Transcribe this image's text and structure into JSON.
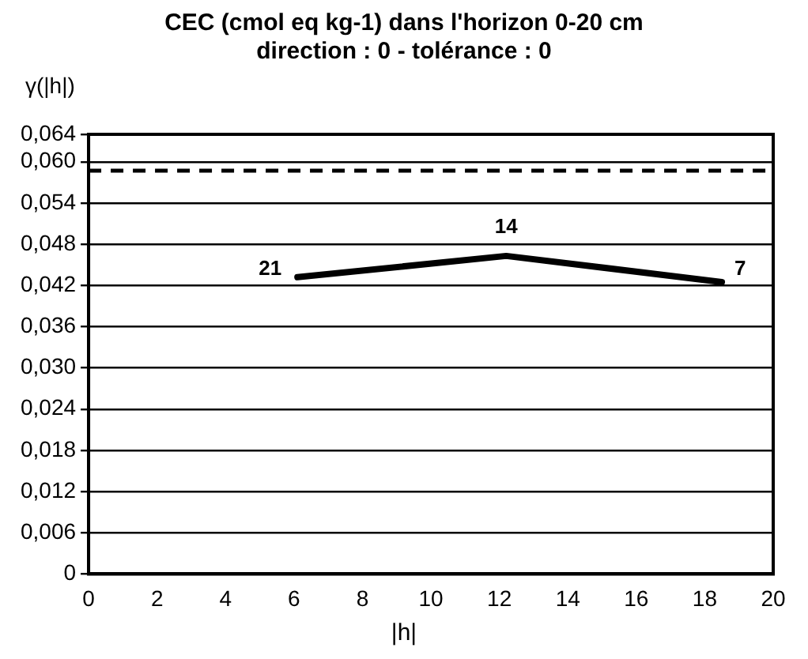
{
  "chart_data": {
    "type": "line",
    "title": "CEC (cmol eq kg-1) dans l'horizon 0-20 cm",
    "subtitle": "direction : 0 - tolérance : 0",
    "xlabel": "|h|",
    "ylabel": "γ(|h|)",
    "x": [
      6.1,
      12.2,
      18.5
    ],
    "series": [
      {
        "color": "#000000",
        "values": [
          0.0432,
          0.0463,
          0.0425
        ]
      }
    ],
    "xlim": [
      0,
      20
    ],
    "xticks": [
      0,
      2,
      4,
      6,
      8,
      10,
      12,
      14,
      16,
      18,
      20
    ],
    "ylim": [
      0,
      0.064
    ],
    "yticks": [
      {
        "value": 0,
        "label": "0"
      },
      {
        "value": 0.006,
        "label": "0,006"
      },
      {
        "value": 0.012,
        "label": "0,012"
      },
      {
        "value": 0.018,
        "label": "0,018"
      },
      {
        "value": 0.024,
        "label": "0,024"
      },
      {
        "value": 0.03,
        "label": "0,030"
      },
      {
        "value": 0.036,
        "label": "0,036"
      },
      {
        "value": 0.042,
        "label": "0,042"
      },
      {
        "value": 0.048,
        "label": "0,048"
      },
      {
        "value": 0.054,
        "label": "0,054"
      },
      {
        "value": 0.06,
        "label": "0,060"
      },
      {
        "value": 0.064,
        "label": "0,064"
      }
    ],
    "ref_lines": [
      {
        "axis": "y",
        "value": 0.0587,
        "color": "#000000",
        "line_style": "dashed"
      }
    ],
    "annotations": [
      {
        "text": "21",
        "x": 6.1,
        "y": 0.0432
      },
      {
        "text": "14",
        "x": 12.2,
        "y": 0.0463
      },
      {
        "text": "7",
        "x": 18.5,
        "y": 0.0425
      }
    ],
    "grid": "y",
    "legend": false,
    "marker": "none",
    "line_style": "solid"
  }
}
